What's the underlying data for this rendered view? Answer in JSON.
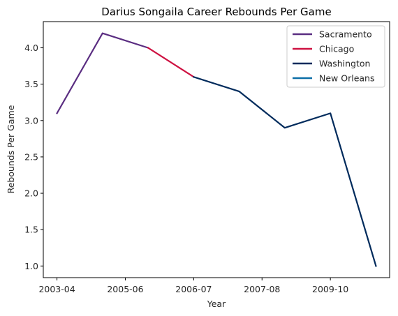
{
  "chart_data": {
    "type": "line",
    "title": "Darius Songaila Career Rebounds Per Game",
    "xlabel": "Year",
    "ylabel": "Rebounds Per Game",
    "x_tick_labels": [
      "2003-04",
      "2005-06",
      "2006-07",
      "2007-08",
      "2009-10"
    ],
    "x_tick_positions": [
      0,
      1.5,
      3,
      4.5,
      6
    ],
    "y_ticks": [
      "1.0",
      "1.5",
      "2.0",
      "2.5",
      "3.0",
      "3.5",
      "4.0"
    ],
    "ylim": [
      0.84,
      4.36
    ],
    "xlim": [
      -0.3,
      7.3
    ],
    "grid": false,
    "legend_position": "top-right",
    "series": [
      {
        "name": "Sacramento",
        "color": "#5A2D81",
        "x": [
          0,
          1,
          2
        ],
        "y": [
          3.1,
          4.2,
          4.0
        ]
      },
      {
        "name": "Chicago",
        "color": "#CE1141",
        "x": [
          2,
          3
        ],
        "y": [
          4.0,
          3.6
        ]
      },
      {
        "name": "Washington",
        "color": "#002B5C",
        "x": [
          3,
          4,
          5,
          6,
          7
        ],
        "y": [
          3.6,
          3.4,
          2.9,
          3.1,
          1.0
        ]
      },
      {
        "name": "New Orleans",
        "color": "#0C6EA7",
        "x": [],
        "y": []
      }
    ]
  }
}
